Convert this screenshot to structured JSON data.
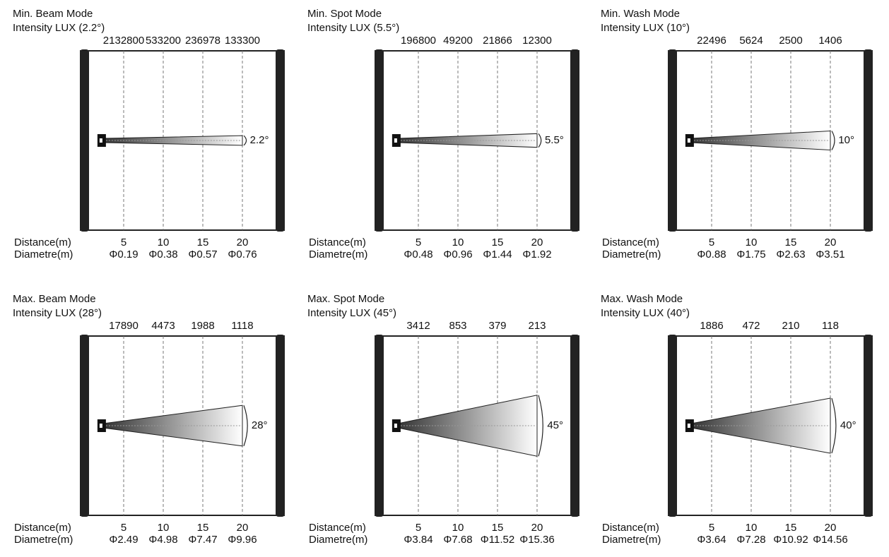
{
  "panels": [
    {
      "title": "Min. Beam Mode",
      "subtitle": "Intensity LUX (2.2°)",
      "lux": [
        2132800,
        533200,
        236978,
        133300
      ],
      "distance_label": "Distance(m)",
      "diameter_label": "Diametre(m)",
      "distances": [
        5,
        10,
        15,
        20
      ],
      "diameters": [
        "Φ0.19",
        "Φ0.38",
        "Φ0.57",
        "Φ0.76"
      ],
      "angle": {
        "value": 2.2,
        "label": "2.2°"
      }
    },
    {
      "title": "Min. Spot Mode",
      "subtitle": "Intensity LUX (5.5°)",
      "lux": [
        196800,
        49200,
        21866,
        12300
      ],
      "distance_label": "Distance(m)",
      "diameter_label": "Diametre(m)",
      "distances": [
        5,
        10,
        15,
        20
      ],
      "diameters": [
        "Φ0.48",
        "Φ0.96",
        "Φ1.44",
        "Φ1.92"
      ],
      "angle": {
        "value": 5.5,
        "label": "5.5°"
      }
    },
    {
      "title": "Min. Wash Mode",
      "subtitle": "Intensity LUX (10°)",
      "lux": [
        22496,
        5624,
        2500,
        1406
      ],
      "distance_label": "Distance(m)",
      "diameter_label": "Diametre(m)",
      "distances": [
        5,
        10,
        15,
        20
      ],
      "diameters": [
        "Φ0.88",
        "Φ1.75",
        "Φ2.63",
        "Φ3.51"
      ],
      "angle": {
        "value": 10,
        "label": "10°"
      }
    },
    {
      "title": "Max. Beam Mode",
      "subtitle": "Intensity LUX (28°)",
      "lux": [
        17890,
        4473,
        1988,
        1118
      ],
      "distance_label": "Distance(m)",
      "diameter_label": "Diametre(m)",
      "distances": [
        5,
        10,
        15,
        20
      ],
      "diameters": [
        "Φ2.49",
        "Φ4.98",
        "Φ7.47",
        "Φ9.96"
      ],
      "angle": {
        "value": 28,
        "label": "28°"
      }
    },
    {
      "title": "Max. Spot Mode",
      "subtitle": "Intensity LUX (45°)",
      "lux": [
        3412,
        853,
        379,
        213
      ],
      "distance_label": "Distance(m)",
      "diameter_label": "Diametre(m)",
      "distances": [
        5,
        10,
        15,
        20
      ],
      "diameters": [
        "Φ3.84",
        "Φ7.68",
        "Φ11.52",
        "Φ15.36"
      ],
      "angle": {
        "value": 45,
        "label": "45°"
      }
    },
    {
      "title": "Max. Wash Mode",
      "subtitle": "Intensity LUX (40°)",
      "lux": [
        1886,
        472,
        210,
        118
      ],
      "distance_label": "Distance(m)",
      "diameter_label": "Diametre(m)",
      "distances": [
        5,
        10,
        15,
        20
      ],
      "diameters": [
        "Φ3.64",
        "Φ7.28",
        "Φ10.92",
        "Φ14.56"
      ],
      "angle": {
        "value": 40,
        "label": "40°"
      }
    }
  ]
}
